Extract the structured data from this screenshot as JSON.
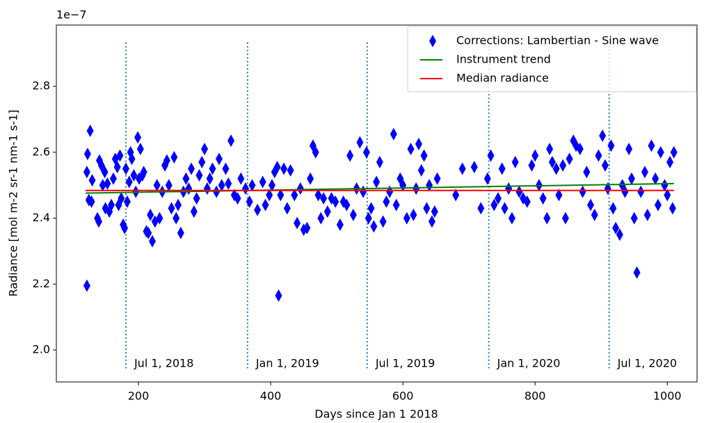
{
  "chart_data": {
    "type": "scatter",
    "offset_label": "1e−7",
    "xlabel": "Days since Jan 1 2018",
    "ylabel": "Radiance [mol m-2 sr-1 nm-1 s-1]",
    "xlim": [
      75.8,
      1045
    ],
    "ylim": [
      1.903,
      2.986
    ],
    "xticks": [
      200,
      400,
      600,
      800,
      1000
    ],
    "yticks": [
      {
        "value": 2,
        "label": "2.0"
      },
      2.2,
      2.4,
      2.6,
      2.8
    ],
    "legend": "upper right",
    "annotations": [
      {
        "x": 181,
        "label": "Jul 1, 2018",
        "color": "#1f77b4"
      },
      {
        "x": 365,
        "label": "Jan 1, 2019",
        "color": "#1f77b4"
      },
      {
        "x": 546,
        "label": "Jul 1, 2019",
        "color": "#1f77b4"
      },
      {
        "x": 730,
        "label": "Jan 1, 2020",
        "color": "#1f77b4"
      },
      {
        "x": 912,
        "label": "Jul 1, 2020",
        "color": "#1f77b4"
      }
    ],
    "series": [
      {
        "name": "Corrections: Lambertian - Sine wave",
        "color": "#0000ff",
        "marker": "thin_diamond",
        "x": [
          122,
          122,
          123,
          125,
          127,
          129,
          130,
          138,
          140,
          141,
          144,
          146,
          149,
          150,
          153,
          156,
          159,
          162,
          165,
          168,
          170,
          172,
          174,
          177,
          179,
          181,
          183,
          186,
          188,
          190,
          193,
          196,
          199,
          201,
          203,
          206,
          208,
          212,
          215,
          218,
          221,
          225,
          228,
          232,
          236,
          240,
          243,
          246,
          250,
          254,
          257,
          260,
          264,
          268,
          272,
          276,
          280,
          284,
          288,
          292,
          296,
          300,
          304,
          308,
          312,
          318,
          322,
          326,
          332,
          336,
          340,
          345,
          350,
          355,
          362,
          368,
          372,
          380,
          388,
          392,
          398,
          402,
          406,
          410,
          412,
          415,
          420,
          425,
          430,
          436,
          440,
          445,
          450,
          455,
          460,
          464,
          468,
          472,
          476,
          480,
          486,
          492,
          498,
          505,
          510,
          515,
          520,
          525,
          530,
          535,
          540,
          545,
          548,
          552,
          556,
          560,
          565,
          570,
          575,
          580,
          586,
          590,
          596,
          600,
          606,
          612,
          616,
          620,
          624,
          628,
          632,
          636,
          640,
          644,
          648,
          652,
          680,
          690,
          708,
          718,
          728,
          733,
          738,
          744,
          750,
          754,
          760,
          765,
          770,
          776,
          782,
          788,
          795,
          800,
          806,
          812,
          818,
          822,
          826,
          832,
          836,
          842,
          846,
          852,
          858,
          862,
          868,
          872,
          878,
          884,
          890,
          896,
          902,
          906,
          910,
          915,
          918,
          922,
          928,
          932,
          936,
          942,
          946,
          950,
          954,
          960,
          966,
          970,
          976,
          982,
          986,
          990,
          996,
          1000,
          1004,
          1008,
          1010
        ],
        "values": [
          2.195,
          2.54,
          2.595,
          2.455,
          2.665,
          2.45,
          2.515,
          2.4,
          2.39,
          2.575,
          2.56,
          2.5,
          2.54,
          2.43,
          2.505,
          2.42,
          2.44,
          2.52,
          2.58,
          2.555,
          2.44,
          2.59,
          2.46,
          2.38,
          2.37,
          2.55,
          2.45,
          2.51,
          2.6,
          2.58,
          2.53,
          2.48,
          2.645,
          2.52,
          2.61,
          2.53,
          2.54,
          2.36,
          2.355,
          2.41,
          2.33,
          2.39,
          2.5,
          2.4,
          2.48,
          2.56,
          2.575,
          2.5,
          2.43,
          2.585,
          2.4,
          2.44,
          2.355,
          2.48,
          2.52,
          2.49,
          2.55,
          2.42,
          2.46,
          2.53,
          2.57,
          2.61,
          2.49,
          2.52,
          2.55,
          2.48,
          2.58,
          2.5,
          2.55,
          2.505,
          2.635,
          2.47,
          2.46,
          2.52,
          2.49,
          2.45,
          2.5,
          2.425,
          2.51,
          2.44,
          2.47,
          2.5,
          2.54,
          2.555,
          2.165,
          2.47,
          2.55,
          2.43,
          2.545,
          2.47,
          2.385,
          2.49,
          2.365,
          2.37,
          2.52,
          2.62,
          2.6,
          2.47,
          2.4,
          2.46,
          2.42,
          2.46,
          2.45,
          2.38,
          2.45,
          2.44,
          2.59,
          2.41,
          2.49,
          2.63,
          2.48,
          2.6,
          2.4,
          2.43,
          2.375,
          2.51,
          2.57,
          2.39,
          2.45,
          2.48,
          2.655,
          2.44,
          2.52,
          2.5,
          2.4,
          2.61,
          2.41,
          2.49,
          2.625,
          2.545,
          2.59,
          2.43,
          2.5,
          2.39,
          2.42,
          2.52,
          2.47,
          2.55,
          2.555,
          2.43,
          2.52,
          2.59,
          2.44,
          2.46,
          2.55,
          2.43,
          2.49,
          2.4,
          2.57,
          2.48,
          2.46,
          2.45,
          2.56,
          2.59,
          2.5,
          2.46,
          2.4,
          2.61,
          2.57,
          2.55,
          2.47,
          2.56,
          2.4,
          2.58,
          2.635,
          2.62,
          2.61,
          2.48,
          2.54,
          2.44,
          2.41,
          2.59,
          2.65,
          2.56,
          2.49,
          2.62,
          2.43,
          2.37,
          2.35,
          2.5,
          2.48,
          2.61,
          2.52,
          2.4,
          2.235,
          2.48,
          2.54,
          2.41,
          2.62,
          2.52,
          2.44,
          2.6,
          2.5,
          2.47,
          2.57,
          2.43,
          2.6
        ]
      },
      {
        "name": "Instrument trend",
        "color": "#008000",
        "marker": "line",
        "x": [
          120,
          1010
        ],
        "values": [
          2.476,
          2.505
        ]
      },
      {
        "name": "Median radiance",
        "color": "#ff0000",
        "marker": "line",
        "x": [
          120,
          1010
        ],
        "values": [
          2.484,
          2.484
        ]
      }
    ]
  }
}
